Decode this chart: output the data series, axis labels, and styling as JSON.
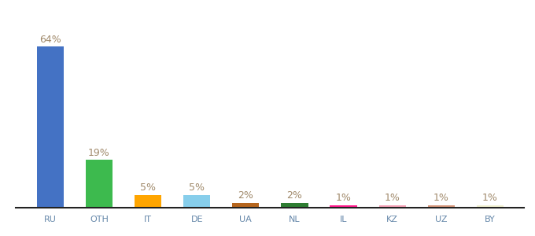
{
  "categories": [
    "RU",
    "OTH",
    "IT",
    "DE",
    "UA",
    "NL",
    "IL",
    "KZ",
    "UZ",
    "BY"
  ],
  "values": [
    64,
    19,
    5,
    5,
    2,
    2,
    1,
    1,
    1,
    1
  ],
  "bar_colors": [
    "#4472c4",
    "#3dba4e",
    "#ffa500",
    "#87ceeb",
    "#b5651d",
    "#2e7d32",
    "#ff1a8c",
    "#f4a0b5",
    "#d4967a",
    "#f0f0d0"
  ],
  "labels": [
    "64%",
    "19%",
    "5%",
    "5%",
    "2%",
    "2%",
    "1%",
    "1%",
    "1%",
    "1%"
  ],
  "label_color": "#a0896a",
  "label_fontsize": 9,
  "xlabel_fontsize": 8,
  "xlabel_color": "#6688aa",
  "ylim": [
    0,
    75
  ],
  "background_color": "#ffffff",
  "figsize": [
    6.8,
    3.0
  ],
  "dpi": 100,
  "bar_width": 0.55,
  "spine_color": "#222222"
}
